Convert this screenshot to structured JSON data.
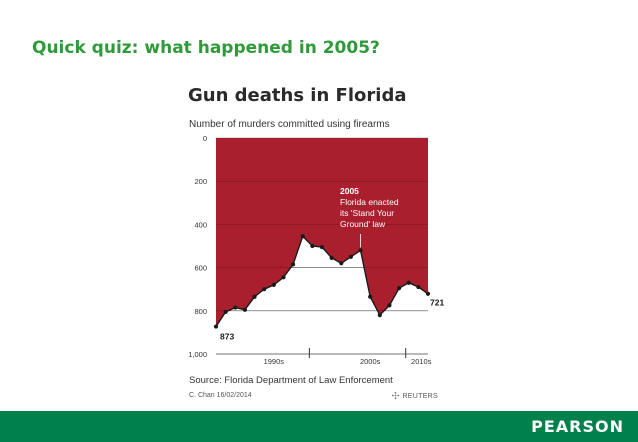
{
  "slide": {
    "title": "Quick quiz: what happened in 2005?",
    "footer_logo": "PEARSON"
  },
  "colors": {
    "title_green": "#2f9a3a",
    "footer_green": "#00804b",
    "area_red": "#aa1f2e"
  },
  "chart_data": {
    "type": "area",
    "title": "Gun deaths in Florida",
    "subtitle": "Number of murders committed using firearms",
    "y_inverted": true,
    "ylim": [
      0,
      1000
    ],
    "y_ticks": [
      "0",
      "200",
      "400",
      "600",
      "800",
      "1,000"
    ],
    "x_tick_labels": [
      "1990s",
      "2000s",
      "2010s"
    ],
    "x": [
      1990,
      1991,
      1992,
      1993,
      1994,
      1995,
      1996,
      1997,
      1998,
      1999,
      2000,
      2001,
      2002,
      2003,
      2004,
      2005,
      2006,
      2007,
      2008,
      2009,
      2010,
      2011,
      2012
    ],
    "values": [
      873,
      805,
      785,
      795,
      735,
      700,
      680,
      645,
      585,
      455,
      500,
      505,
      555,
      580,
      550,
      520,
      735,
      820,
      775,
      695,
      670,
      690,
      721
    ],
    "annotation": {
      "year": "2005",
      "lines": [
        "Florida enacted",
        "its 'Stand Your",
        "Ground' law"
      ]
    },
    "start_label": "873",
    "end_label": "721",
    "grid": true,
    "source": "Source: Florida Department of Law Enforcement",
    "credit": "C. Chan 16/02/2014",
    "brand": "REUTERS"
  }
}
